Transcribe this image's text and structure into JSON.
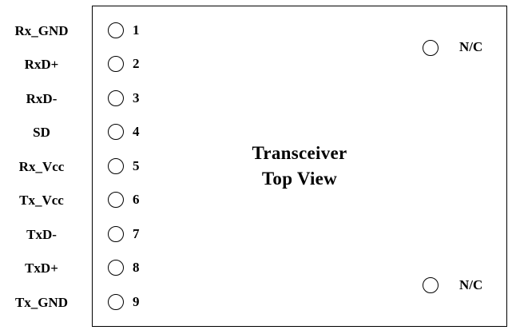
{
  "title": {
    "line1": "Transceiver",
    "line2": "Top View"
  },
  "pins": [
    {
      "label": "Rx_GND",
      "number": "1"
    },
    {
      "label": "RxD+",
      "number": "2"
    },
    {
      "label": "RxD-",
      "number": "3"
    },
    {
      "label": "SD",
      "number": "4"
    },
    {
      "label": "Rx_Vcc",
      "number": "5"
    },
    {
      "label": "Tx_Vcc",
      "number": "6"
    },
    {
      "label": "TxD-",
      "number": "7"
    },
    {
      "label": "TxD+",
      "number": "8"
    },
    {
      "label": "Tx_GND",
      "number": "9"
    }
  ],
  "nc_pins": [
    {
      "label": "N/C"
    },
    {
      "label": "N/C"
    }
  ]
}
